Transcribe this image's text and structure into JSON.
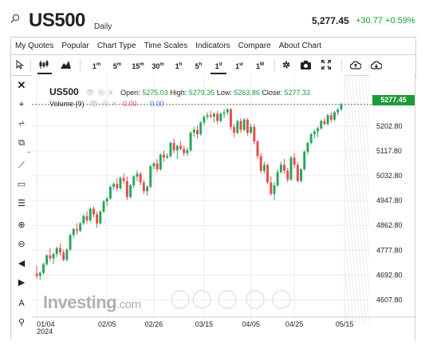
{
  "header": {
    "symbol": "US500",
    "interval": "Daily",
    "last_price": "5,277.45",
    "change": "+30.77",
    "change_pct": "+0.59%",
    "change_color": "#1a9a3a"
  },
  "menu": [
    "My Quotes",
    "Popular",
    "Chart Type",
    "Time Scales",
    "Indicators",
    "Compare",
    "About Chart"
  ],
  "toolbar": {
    "timeframes": [
      {
        "n": "1",
        "u": "m"
      },
      {
        "n": "5",
        "u": "m"
      },
      {
        "n": "15",
        "u": "m"
      },
      {
        "n": "30",
        "u": "m"
      },
      {
        "n": "1",
        "u": "h"
      },
      {
        "n": "5",
        "u": "h"
      },
      {
        "n": "1",
        "u": "d"
      },
      {
        "n": "1",
        "u": "w"
      },
      {
        "n": "1",
        "u": "M"
      }
    ],
    "active_timeframe": "1d",
    "icons": [
      "cursor-icon",
      "candlestick-icon",
      "mountain-chart-icon",
      "gear-icon",
      "camera-icon",
      "fullscreen-icon",
      "cloud-upload-icon",
      "cloud-download-icon"
    ]
  },
  "left_tools": [
    "close-icon",
    "crosshair-icon",
    "fibonacci-icon",
    "copy-icon",
    "trendline-icon",
    "rectangle-icon",
    "horizontal-lines-icon",
    "zoom-in-icon",
    "zoom-out-icon",
    "arrow-left-icon",
    "arrow-right-icon",
    "text-tool-icon",
    "marker-icon"
  ],
  "legend": {
    "symbol": "US500",
    "open_label": "Open:",
    "open": "5275.03",
    "high_label": "High:",
    "high": "5279.35",
    "low_label": "Low:",
    "low": "5263.86",
    "close_label": "Close:",
    "close": "5277.33",
    "volume_label": "Volume (9)",
    "vol1": "0.00",
    "vol2": "0.00"
  },
  "watermark": {
    "brand": "Investing",
    "suffix": ".com"
  },
  "current_price_tag": "5277.45",
  "colors": {
    "up": "#26a65b",
    "down": "#e84c4c",
    "grid": "#ececec",
    "accent": "#1b9a3b"
  },
  "chart_data": {
    "type": "candlestick",
    "ylim": [
      4560,
      5320
    ],
    "yticks": [
      "5202.80",
      "5117.80",
      "5032.80",
      "4947.80",
      "4862.80",
      "4777.80",
      "4692.80",
      "4607.80"
    ],
    "ytick_values": [
      5202.8,
      5117.8,
      5032.8,
      4947.8,
      4862.8,
      4777.8,
      4692.8,
      4607.8
    ],
    "xticks": [
      "01/04\n2024",
      "02/05",
      "02/26",
      "03/15",
      "04/05",
      "04/25",
      "05/15"
    ],
    "xtick_index": [
      0,
      21,
      35,
      50,
      64,
      77,
      92
    ],
    "candles": [
      [
        4697,
        4725,
        4680,
        4690
      ],
      [
        4690,
        4705,
        4675,
        4700
      ],
      [
        4700,
        4735,
        4695,
        4730
      ],
      [
        4730,
        4765,
        4725,
        4760
      ],
      [
        4760,
        4785,
        4740,
        4750
      ],
      [
        4750,
        4770,
        4730,
        4765
      ],
      [
        4765,
        4790,
        4755,
        4785
      ],
      [
        4785,
        4800,
        4760,
        4770
      ],
      [
        4770,
        4780,
        4740,
        4745
      ],
      [
        4745,
        4785,
        4740,
        4780
      ],
      [
        4780,
        4835,
        4775,
        4830
      ],
      [
        4830,
        4855,
        4820,
        4850
      ],
      [
        4850,
        4870,
        4830,
        4845
      ],
      [
        4845,
        4875,
        4840,
        4870
      ],
      [
        4870,
        4900,
        4865,
        4895
      ],
      [
        4895,
        4910,
        4870,
        4880
      ],
      [
        4880,
        4925,
        4875,
        4920
      ],
      [
        4920,
        4930,
        4890,
        4900
      ],
      [
        4900,
        4910,
        4855,
        4870
      ],
      [
        4870,
        4915,
        4865,
        4910
      ],
      [
        4910,
        4950,
        4905,
        4945
      ],
      [
        4945,
        4960,
        4930,
        4955
      ],
      [
        4955,
        5000,
        4950,
        4995
      ],
      [
        4995,
        5010,
        4985,
        5005
      ],
      [
        5005,
        5025,
        4980,
        4990
      ],
      [
        4990,
        5030,
        4985,
        5025
      ],
      [
        5025,
        5040,
        5005,
        5015
      ],
      [
        5015,
        5030,
        4950,
        4960
      ],
      [
        4960,
        5005,
        4955,
        5000
      ],
      [
        5000,
        5035,
        4990,
        5030
      ],
      [
        5030,
        5050,
        5015,
        5040
      ],
      [
        5040,
        5045,
        5000,
        5010
      ],
      [
        5010,
        5020,
        4970,
        4980
      ],
      [
        4980,
        5000,
        4965,
        4995
      ],
      [
        4995,
        5070,
        4990,
        5065
      ],
      [
        5065,
        5080,
        5055,
        5075
      ],
      [
        5075,
        5090,
        5045,
        5055
      ],
      [
        5055,
        5110,
        5050,
        5105
      ],
      [
        5105,
        5120,
        5080,
        5095
      ],
      [
        5095,
        5110,
        5090,
        5100
      ],
      [
        5100,
        5150,
        5095,
        5145
      ],
      [
        5145,
        5160,
        5110,
        5120
      ],
      [
        5120,
        5140,
        5090,
        5135
      ],
      [
        5135,
        5150,
        5120,
        5125
      ],
      [
        5125,
        5135,
        5100,
        5110
      ],
      [
        5110,
        5130,
        5100,
        5120
      ],
      [
        5120,
        5185,
        5115,
        5180
      ],
      [
        5180,
        5200,
        5165,
        5190
      ],
      [
        5190,
        5205,
        5160,
        5175
      ],
      [
        5175,
        5220,
        5170,
        5215
      ],
      [
        5215,
        5240,
        5205,
        5235
      ],
      [
        5235,
        5250,
        5225,
        5240
      ],
      [
        5240,
        5255,
        5230,
        5235
      ],
      [
        5235,
        5250,
        5215,
        5245
      ],
      [
        5245,
        5255,
        5210,
        5220
      ],
      [
        5220,
        5250,
        5215,
        5245
      ],
      [
        5245,
        5260,
        5230,
        5250
      ],
      [
        5250,
        5265,
        5240,
        5260
      ],
      [
        5260,
        5265,
        5190,
        5200
      ],
      [
        5200,
        5210,
        5165,
        5180
      ],
      [
        5180,
        5225,
        5175,
        5220
      ],
      [
        5220,
        5230,
        5180,
        5190
      ],
      [
        5190,
        5230,
        5185,
        5225
      ],
      [
        5225,
        5230,
        5170,
        5180
      ],
      [
        5180,
        5210,
        5175,
        5200
      ],
      [
        5200,
        5210,
        5140,
        5150
      ],
      [
        5150,
        5155,
        5090,
        5100
      ],
      [
        5100,
        5110,
        5040,
        5050
      ],
      [
        5050,
        5080,
        5040,
        5070
      ],
      [
        5070,
        5075,
        5005,
        5010
      ],
      [
        5010,
        5030,
        4965,
        4970
      ],
      [
        4970,
        5010,
        4950,
        5000
      ],
      [
        5000,
        5055,
        4995,
        5045
      ],
      [
        5045,
        5080,
        5040,
        5070
      ],
      [
        5070,
        5090,
        5040,
        5050
      ],
      [
        5050,
        5060,
        5010,
        5020
      ],
      [
        5020,
        5100,
        5015,
        5095
      ],
      [
        5095,
        5110,
        5060,
        5070
      ],
      [
        5070,
        5080,
        5010,
        5015
      ],
      [
        5015,
        5060,
        5010,
        5055
      ],
      [
        5055,
        5120,
        5050,
        5115
      ],
      [
        5115,
        5150,
        5105,
        5145
      ],
      [
        5145,
        5180,
        5140,
        5175
      ],
      [
        5175,
        5190,
        5160,
        5185
      ],
      [
        5185,
        5200,
        5165,
        5195
      ],
      [
        5195,
        5225,
        5190,
        5220
      ],
      [
        5220,
        5230,
        5205,
        5210
      ],
      [
        5210,
        5245,
        5205,
        5240
      ],
      [
        5240,
        5250,
        5215,
        5225
      ],
      [
        5225,
        5255,
        5220,
        5250
      ],
      [
        5250,
        5265,
        5240,
        5260
      ],
      [
        5260,
        5282,
        5255,
        5277
      ]
    ]
  }
}
